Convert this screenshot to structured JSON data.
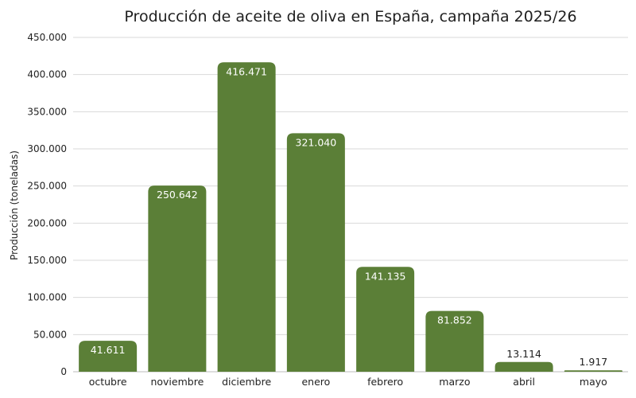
{
  "chart_data": {
    "type": "bar",
    "title": "Producción de aceite de oliva en España, campaña 2025/26",
    "xlabel": "",
    "ylabel": "Producción (toneladas)",
    "categories": [
      "octubre",
      "noviembre",
      "diciembre",
      "enero",
      "febrero",
      "marzo",
      "abril",
      "mayo"
    ],
    "values": [
      41611,
      250642,
      416471,
      321040,
      141135,
      81852,
      13114,
      1917
    ],
    "value_labels": [
      "41.611",
      "250.642",
      "416.471",
      "321.040",
      "141.135",
      "81.852",
      "13.114",
      "1.917"
    ],
    "ylim": [
      0,
      450000
    ],
    "y_ticks": [
      0,
      50000,
      100000,
      150000,
      200000,
      250000,
      300000,
      350000,
      400000,
      450000
    ],
    "y_tick_labels": [
      "0",
      "50.000",
      "100.000",
      "150.000",
      "200.000",
      "250.000",
      "300.000",
      "350.000",
      "400.000",
      "450.000"
    ],
    "grid": true,
    "legend": "none",
    "colors": {
      "bar": "#5b7f37",
      "label_inside": "#ffffff",
      "label_outside": "#222222"
    }
  }
}
